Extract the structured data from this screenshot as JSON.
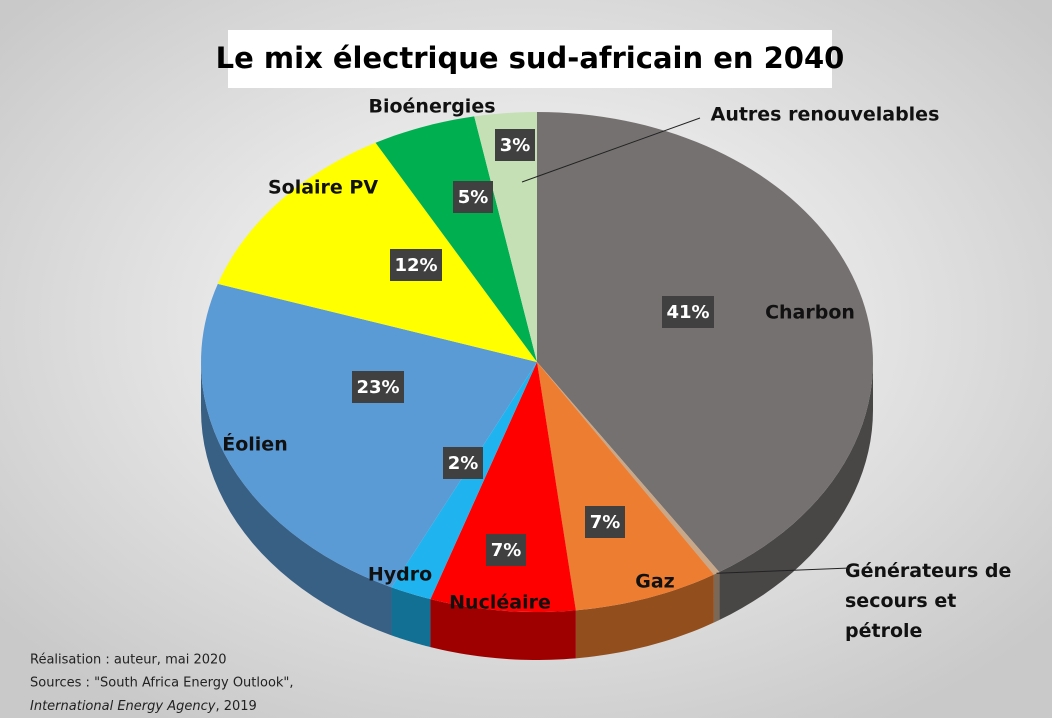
{
  "chart_data": {
    "type": "pie",
    "title": "Le mix électrique sud-africain en 2040",
    "categories": [
      "Charbon",
      "Générateurs de secours et pétrole",
      "Gaz",
      "Nucléaire",
      "Hydro",
      "Éolien",
      "Solaire PV",
      "Bioénergies",
      "Autres renouvelables"
    ],
    "values": [
      41,
      0.3,
      7,
      7,
      2,
      23,
      12,
      5,
      3
    ],
    "value_labels": [
      "41%",
      null,
      "7%",
      "7%",
      "2%",
      "23%",
      "12%",
      "5%",
      "3%"
    ],
    "colors": [
      "#767171",
      "#c8a888",
      "#ed7d31",
      "#ff0000",
      "#1fb4f0",
      "#5b9bd5",
      "#ffff00",
      "#00b050",
      "#c5e0b4"
    ],
    "notes": {
      "line1": "Réalisation : auteur, mai 2020",
      "line2": "Sources : \"South Africa Energy Outlook\",",
      "line3_italic": "International Energy Agency",
      "line3_rest": ", 2019"
    }
  }
}
